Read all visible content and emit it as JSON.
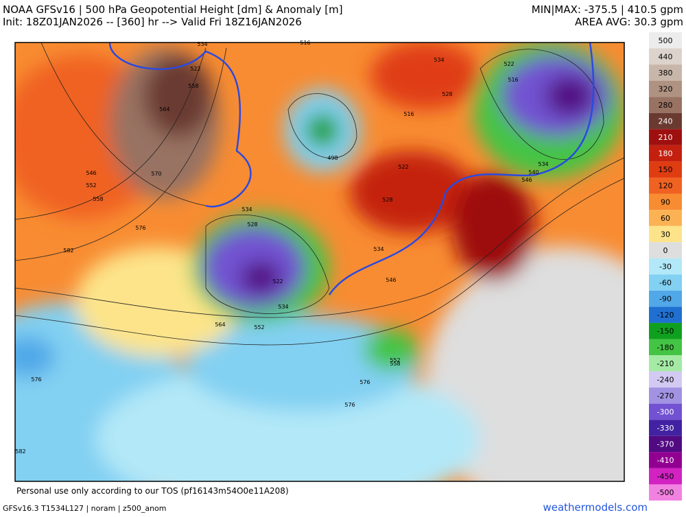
{
  "header": {
    "title": "NOAA GFSv16 | 500 hPa Geopotential Height [dm] & Anomaly [m]",
    "init": "Init: 18Z01JAN2026 -- [360] hr --> Valid Fri 18Z16JAN2026",
    "minmax": "MIN|MAX: -375.5 | 410.5 gpm",
    "area_avg": "AREA AVG: 30.3 gpm"
  },
  "colorbar": [
    {
      "value": 500,
      "color": "#ececec"
    },
    {
      "value": 440,
      "color": "#dcd4cc"
    },
    {
      "value": 380,
      "color": "#c8b6aa"
    },
    {
      "value": 320,
      "color": "#b09282"
    },
    {
      "value": 280,
      "color": "#987262"
    },
    {
      "value": 240,
      "color": "#6a3a30"
    },
    {
      "value": 210,
      "color": "#9e1010"
    },
    {
      "value": 180,
      "color": "#c42010"
    },
    {
      "value": 150,
      "color": "#e03c12"
    },
    {
      "value": 120,
      "color": "#f06222"
    },
    {
      "value": 90,
      "color": "#f88c32"
    },
    {
      "value": 60,
      "color": "#fbb254"
    },
    {
      "value": 30,
      "color": "#fde48a"
    },
    {
      "value": 0,
      "color": "#dedede"
    },
    {
      "value": -30,
      "color": "#b2e8f8"
    },
    {
      "value": -60,
      "color": "#82d0f2"
    },
    {
      "value": -90,
      "color": "#50a8e8"
    },
    {
      "value": -120,
      "color": "#2070d2"
    },
    {
      "value": -150,
      "color": "#10a020"
    },
    {
      "value": -180,
      "color": "#44c444"
    },
    {
      "value": -210,
      "color": "#a4eaa4"
    },
    {
      "value": -240,
      "color": "#d2caf2"
    },
    {
      "value": -270,
      "color": "#a292e2"
    },
    {
      "value": -300,
      "color": "#7252d2"
    },
    {
      "value": -330,
      "color": "#4222a2"
    },
    {
      "value": -370,
      "color": "#520a82"
    },
    {
      "value": -410,
      "color": "#920092"
    },
    {
      "value": -450,
      "color": "#d222c2"
    },
    {
      "value": -500,
      "color": "#f282e2"
    }
  ],
  "map": {
    "contour_labels": [
      534,
      522,
      558,
      564,
      570,
      546,
      552,
      558,
      576,
      582,
      534,
      528,
      522,
      534,
      552,
      564,
      576,
      576,
      576,
      582,
      498,
      534,
      528,
      516,
      522,
      528,
      534,
      546,
      522,
      516,
      534,
      540,
      546,
      552,
      558,
      516
    ]
  },
  "footer": {
    "tos": "Personal use only according to our TOS (pf16143m54O0e11A208)",
    "model": "GFSv16.3 T1534L127 | noram | z500_anom",
    "site": "weathermodels.com"
  }
}
